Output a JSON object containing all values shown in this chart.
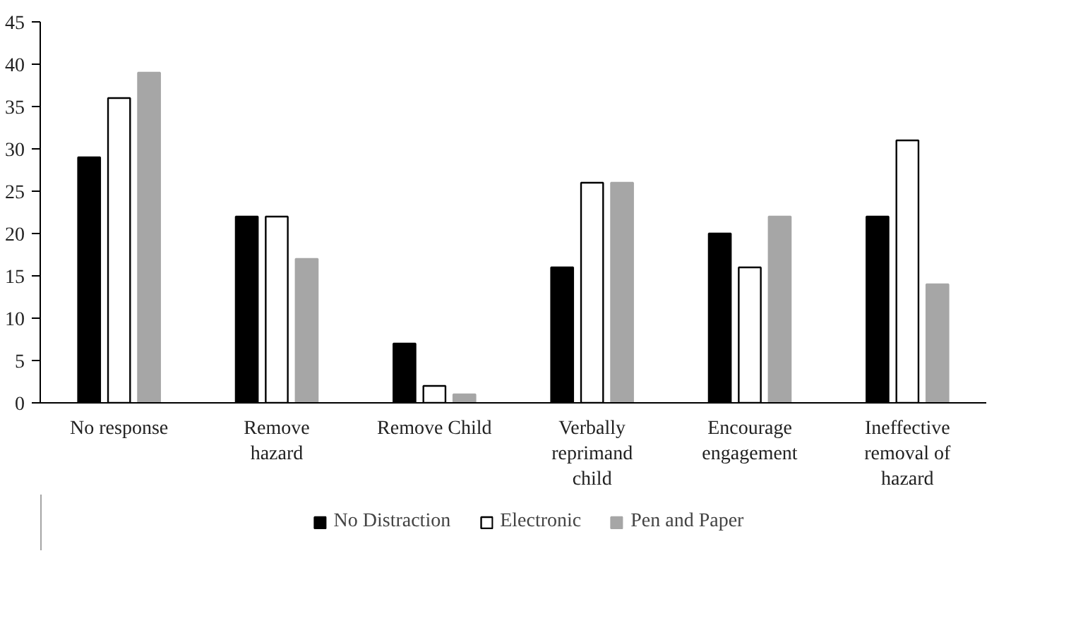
{
  "chart_data": {
    "type": "bar",
    "categories": [
      "No response",
      "Remove hazard",
      "Remove Child",
      "Verbally reprimand child",
      "Encourage engagement",
      "Ineffective removal of hazard"
    ],
    "series": [
      {
        "name": "No Distraction",
        "color": "#000000",
        "values": [
          29,
          22,
          7,
          16,
          20,
          22
        ]
      },
      {
        "name": "Electronic",
        "color": "#ffffff",
        "values": [
          36,
          22,
          2,
          26,
          16,
          31
        ]
      },
      {
        "name": "Pen and Paper",
        "color": "#a6a6a6",
        "values": [
          39,
          17,
          1,
          26,
          22,
          14
        ]
      }
    ],
    "ylim": [
      0,
      45
    ],
    "yticks": [
      0,
      5,
      10,
      15,
      20,
      25,
      30,
      35,
      40,
      45
    ],
    "grid": false,
    "legend": "bottom"
  }
}
